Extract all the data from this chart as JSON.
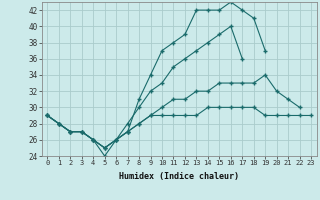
{
  "xlabel": "Humidex (Indice chaleur)",
  "bg_color": "#cceaea",
  "grid_color": "#aacccc",
  "line_color": "#1a6b6b",
  "xlim": [
    -0.5,
    23.5
  ],
  "ylim": [
    24,
    43
  ],
  "yticks": [
    24,
    26,
    28,
    30,
    32,
    34,
    36,
    38,
    40,
    42
  ],
  "xticks": [
    0,
    1,
    2,
    3,
    4,
    5,
    6,
    7,
    8,
    9,
    10,
    11,
    12,
    13,
    14,
    15,
    16,
    17,
    18,
    19,
    20,
    21,
    22,
    23
  ],
  "series": [
    [
      29,
      28,
      27,
      27,
      26,
      24,
      26,
      27,
      31,
      34,
      37,
      38,
      39,
      42,
      42,
      42,
      43,
      42,
      41,
      37,
      null,
      null,
      null,
      null
    ],
    [
      29,
      28,
      27,
      27,
      26,
      25,
      26,
      28,
      30,
      32,
      33,
      35,
      36,
      37,
      38,
      39,
      40,
      36,
      null,
      null,
      null,
      null,
      null,
      null
    ],
    [
      29,
      28,
      27,
      27,
      26,
      25,
      26,
      27,
      28,
      29,
      30,
      31,
      31,
      32,
      32,
      33,
      33,
      33,
      33,
      34,
      32,
      31,
      30,
      null
    ],
    [
      29,
      28,
      27,
      27,
      26,
      25,
      26,
      27,
      28,
      29,
      29,
      29,
      29,
      29,
      30,
      30,
      30,
      30,
      30,
      29,
      29,
      29,
      29,
      29
    ]
  ]
}
